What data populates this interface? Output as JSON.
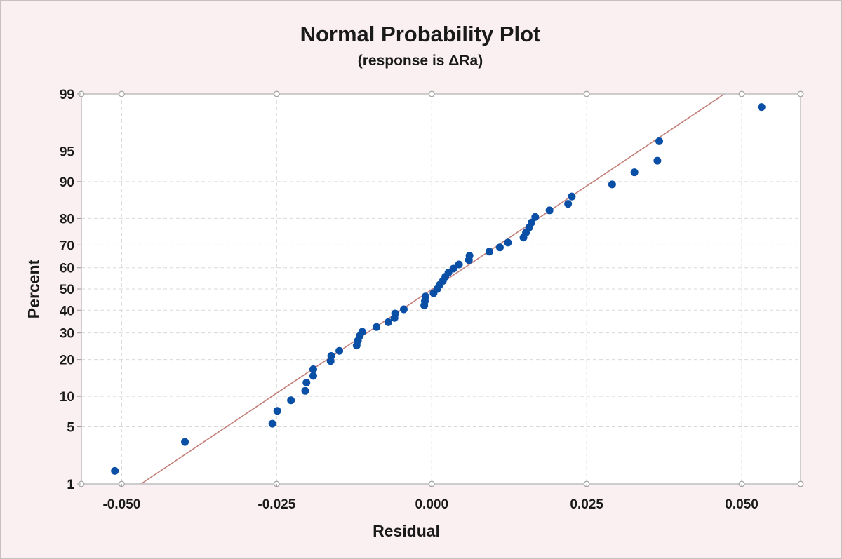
{
  "chart_data": {
    "type": "scatter",
    "title": "Normal Probability Plot",
    "subtitle": "(response is ΔRa)",
    "xlabel": "Residual",
    "ylabel": "Percent",
    "xlim": [
      -0.0565,
      0.0595
    ],
    "ylim": [
      1,
      99
    ],
    "y_scale": "normal-probability",
    "grid": true,
    "x_ticks": [
      -0.05,
      -0.025,
      0.0,
      0.025,
      0.05
    ],
    "x_tick_labels": [
      "-0.050",
      "-0.025",
      "0.000",
      "0.025",
      "0.050"
    ],
    "y_ticks": [
      1,
      5,
      10,
      20,
      30,
      40,
      50,
      60,
      70,
      80,
      90,
      95,
      99
    ],
    "y_tick_labels": [
      "1",
      "5",
      "10",
      "20",
      "30",
      "40",
      "50",
      "60",
      "70",
      "80",
      "90",
      "95",
      "99"
    ],
    "colors": {
      "points": "#0a4fa6",
      "fit_line": "#c47f7a",
      "grid": "#d9d9d9",
      "plot_background": "#ffffff",
      "page_background": "#faf0f1"
    },
    "fit_line": {
      "points": [
        [
          -0.0469,
          1.0
        ],
        [
          0.0472,
          99.0
        ]
      ]
    },
    "points": [
      {
        "x": -0.0511,
        "y": 1.5
      },
      {
        "x": -0.0398,
        "y": 3.4
      },
      {
        "x": -0.0257,
        "y": 5.4
      },
      {
        "x": -0.0249,
        "y": 7.3
      },
      {
        "x": -0.0227,
        "y": 9.2
      },
      {
        "x": -0.0204,
        "y": 11.2
      },
      {
        "x": -0.0202,
        "y": 13.2
      },
      {
        "x": -0.0191,
        "y": 15.0
      },
      {
        "x": -0.0191,
        "y": 16.9
      },
      {
        "x": -0.0163,
        "y": 19.5
      },
      {
        "x": -0.0162,
        "y": 21.2
      },
      {
        "x": -0.0149,
        "y": 23.0
      },
      {
        "x": -0.0121,
        "y": 25.0
      },
      {
        "x": -0.0119,
        "y": 26.9
      },
      {
        "x": -0.0116,
        "y": 28.8
      },
      {
        "x": -0.0112,
        "y": 30.5
      },
      {
        "x": -0.0089,
        "y": 32.5
      },
      {
        "x": -0.007,
        "y": 34.6
      },
      {
        "x": -0.006,
        "y": 36.5
      },
      {
        "x": -0.0059,
        "y": 38.5
      },
      {
        "x": -0.0045,
        "y": 40.4
      },
      {
        "x": -0.0012,
        "y": 42.2
      },
      {
        "x": -0.0011,
        "y": 44.2
      },
      {
        "x": -0.001,
        "y": 46.4
      },
      {
        "x": 0.0003,
        "y": 48.0
      },
      {
        "x": 0.0009,
        "y": 50.0
      },
      {
        "x": 0.0013,
        "y": 52.0
      },
      {
        "x": 0.0018,
        "y": 53.8
      },
      {
        "x": 0.0022,
        "y": 55.8
      },
      {
        "x": 0.0027,
        "y": 57.7
      },
      {
        "x": 0.0035,
        "y": 59.6
      },
      {
        "x": 0.0044,
        "y": 61.5
      },
      {
        "x": 0.006,
        "y": 63.5
      },
      {
        "x": 0.0061,
        "y": 65.4
      },
      {
        "x": 0.0093,
        "y": 67.2
      },
      {
        "x": 0.011,
        "y": 69.0
      },
      {
        "x": 0.0123,
        "y": 71.0
      },
      {
        "x": 0.0148,
        "y": 73.0
      },
      {
        "x": 0.0152,
        "y": 74.9
      },
      {
        "x": 0.0157,
        "y": 76.8
      },
      {
        "x": 0.0161,
        "y": 78.6
      },
      {
        "x": 0.0167,
        "y": 80.5
      },
      {
        "x": 0.019,
        "y": 82.6
      },
      {
        "x": 0.022,
        "y": 84.5
      },
      {
        "x": 0.0226,
        "y": 86.5
      },
      {
        "x": 0.0291,
        "y": 89.4
      },
      {
        "x": 0.0327,
        "y": 91.8
      },
      {
        "x": 0.0364,
        "y": 93.7
      },
      {
        "x": 0.0367,
        "y": 96.1
      },
      {
        "x": 0.0532,
        "y": 98.5
      }
    ]
  }
}
